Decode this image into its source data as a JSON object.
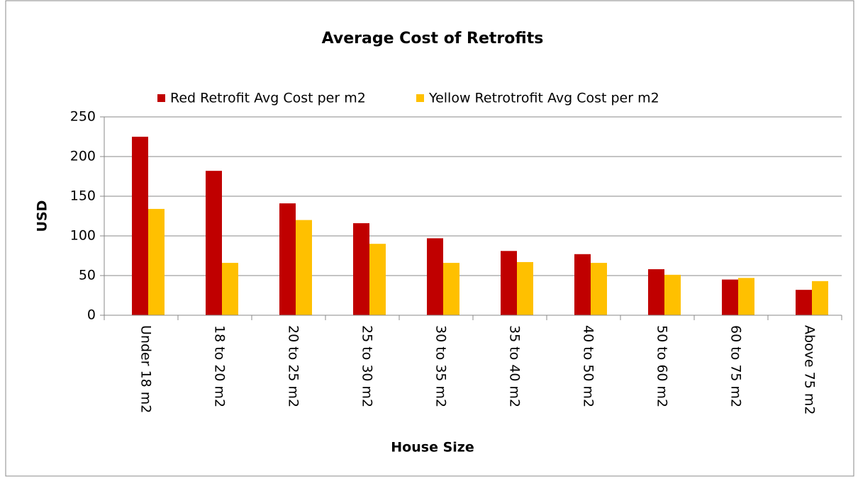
{
  "chart_data": {
    "type": "bar",
    "title": "Average Cost of Retrofits",
    "x_label": "House Size",
    "y_label": "USD",
    "categories": [
      "Under 18 m2",
      "18 to 20 m2",
      "20 to 25 m2",
      "25 to 30 m2",
      "30 to 35 m2",
      "35 to 40 m2",
      "40 to 50 m2",
      "50 to 60 m2",
      "60 to 75 m2",
      "Above 75 m2"
    ],
    "series": [
      {
        "name": "Red Retrofit Avg Cost per m2",
        "color": "#c00000",
        "values": [
          225,
          182,
          141,
          116,
          97,
          81,
          77,
          58,
          45,
          32
        ]
      },
      {
        "name": "Yellow Retrotrofit Avg Cost per m2",
        "color": "#ffc000",
        "values": [
          134,
          66,
          120,
          90,
          66,
          67,
          66,
          51,
          47,
          43
        ]
      }
    ],
    "ylim": [
      0,
      250
    ],
    "yticks": [
      0,
      50,
      100,
      150,
      200,
      250
    ],
    "grid": true,
    "legend": "top"
  }
}
